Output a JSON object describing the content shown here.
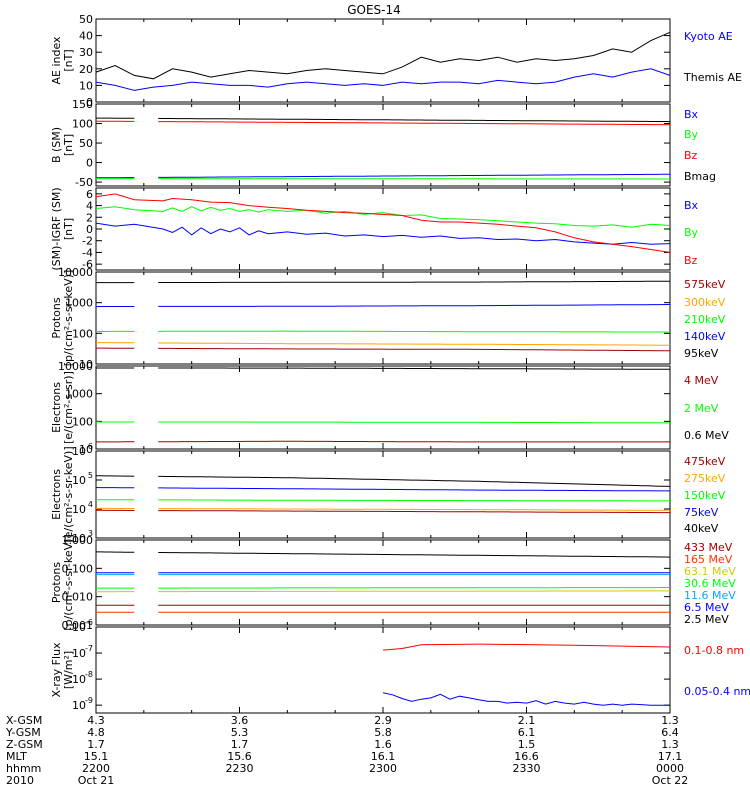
{
  "title": "GOES-14",
  "chart_data": [
    {
      "type": "line",
      "id": "ae",
      "ylabel": [
        "AE index",
        "[nT]"
      ],
      "ylim": [
        0,
        50
      ],
      "ticks": [
        {
          "v": 0,
          "t": "0"
        },
        {
          "v": 10,
          "t": "10"
        },
        {
          "v": 20,
          "t": "20"
        },
        {
          "v": 30,
          "t": "30"
        },
        {
          "v": 40,
          "t": "40"
        },
        {
          "v": 50,
          "t": "50"
        }
      ],
      "series": [
        {
          "name": "Kyoto AE",
          "color": "#0000ff",
          "t": [
            0,
            2,
            4,
            6,
            8,
            10,
            12,
            14,
            16,
            18,
            20,
            22,
            24,
            26,
            28,
            30,
            32,
            34,
            36,
            38,
            40,
            42,
            44,
            46,
            48,
            50,
            52,
            54,
            56,
            58,
            60
          ],
          "values": [
            12,
            10,
            7,
            9,
            10,
            12,
            11,
            10,
            10,
            9,
            11,
            12,
            11,
            10,
            11,
            10,
            12,
            11,
            12,
            12,
            11,
            13,
            12,
            11,
            12,
            15,
            17,
            15,
            18,
            20,
            16
          ]
        },
        {
          "name": "Themis AE",
          "color": "#000000",
          "t": [
            0,
            2,
            4,
            6,
            8,
            10,
            12,
            14,
            16,
            18,
            20,
            22,
            24,
            26,
            28,
            30,
            32,
            34,
            36,
            38,
            40,
            42,
            44,
            46,
            48,
            50,
            52,
            54,
            56,
            58,
            60
          ],
          "values": [
            18,
            22,
            16,
            14,
            20,
            18,
            15,
            17,
            19,
            18,
            17,
            19,
            20,
            19,
            18,
            17,
            21,
            27,
            24,
            26,
            25,
            27,
            24,
            26,
            25,
            26,
            28,
            32,
            30,
            37,
            42
          ]
        }
      ]
    },
    {
      "type": "line",
      "id": "b_sm",
      "ylabel": [
        "B (SM)",
        "[nT]"
      ],
      "ylim": [
        -60,
        150
      ],
      "ticks": [
        {
          "v": -50,
          "t": "-50"
        },
        {
          "v": 0,
          "t": "0"
        },
        {
          "v": 50,
          "t": "50"
        },
        {
          "v": 100,
          "t": "100"
        },
        {
          "v": 150,
          "t": "150"
        }
      ],
      "gaps": [
        [
          4.4,
          5.1
        ],
        [
          5.6,
          6.3
        ]
      ],
      "series": [
        {
          "name": "Bx",
          "color": "#0000ff",
          "t": [
            0,
            60
          ],
          "values": [
            -39,
            -30
          ]
        },
        {
          "name": "By",
          "color": "#00ff00",
          "t": [
            0,
            60
          ],
          "values": [
            -41,
            -42
          ]
        },
        {
          "name": "Bz",
          "color": "#ff0000",
          "t": [
            0,
            60
          ],
          "values": [
            106,
            97
          ]
        },
        {
          "name": "Bmag",
          "color": "#000000",
          "t": [
            0,
            60
          ],
          "values": [
            114,
            105
          ]
        }
      ]
    },
    {
      "type": "line",
      "id": "b_igrf",
      "ylabel": [
        "(SM)-IGRF (SM)",
        "[nT]"
      ],
      "ylim": [
        -7,
        7
      ],
      "ticks": [
        {
          "v": -6,
          "t": "-6"
        },
        {
          "v": -4,
          "t": "-4"
        },
        {
          "v": -2,
          "t": "-2"
        },
        {
          "v": 0,
          "t": "0"
        },
        {
          "v": 2,
          "t": "2"
        },
        {
          "v": 4,
          "t": "4"
        },
        {
          "v": 6,
          "t": "6"
        }
      ],
      "gaps": [
        [
          4.4,
          6.3
        ]
      ],
      "series": [
        {
          "name": "Bx",
          "color": "#0000ff",
          "t": [
            0,
            2,
            4,
            7,
            8,
            9,
            10,
            11,
            12,
            13,
            14,
            15,
            16,
            17,
            18,
            20,
            22,
            24,
            26,
            28,
            30,
            32,
            34,
            36,
            38,
            40,
            42,
            44,
            46,
            48,
            50,
            52,
            54,
            56,
            58,
            60
          ],
          "values": [
            1,
            0.5,
            0.8,
            0,
            -0.6,
            0.3,
            -1,
            0.2,
            -0.8,
            0,
            -0.5,
            0.2,
            -1,
            -0.3,
            -0.8,
            -0.5,
            -0.9,
            -0.7,
            -1.2,
            -1.0,
            -1.3,
            -1.1,
            -1.4,
            -1.2,
            -1.6,
            -1.5,
            -1.8,
            -1.7,
            -2.0,
            -1.8,
            -2.2,
            -2.4,
            -2.6,
            -2.3,
            -2.6,
            -2.5
          ]
        },
        {
          "name": "By",
          "color": "#00ff00",
          "t": [
            0,
            2,
            4,
            7,
            8,
            9,
            10,
            11,
            12,
            13,
            14,
            15,
            16,
            17,
            18,
            20,
            22,
            24,
            26,
            28,
            30,
            32,
            34,
            36,
            38,
            40,
            42,
            44,
            46,
            48,
            50,
            52,
            54,
            56,
            58,
            60
          ],
          "values": [
            3.5,
            3.8,
            3.3,
            3.0,
            3.6,
            3.0,
            3.8,
            3.1,
            3.7,
            3.2,
            3.5,
            3.0,
            3.3,
            2.9,
            3.3,
            3.0,
            3.2,
            2.7,
            3.0,
            2.5,
            2.8,
            2.3,
            2.4,
            1.8,
            1.7,
            1.6,
            1.4,
            1.2,
            1.0,
            0.9,
            0.6,
            0.5,
            0.7,
            0.3,
            0.8,
            0.6
          ]
        },
        {
          "name": "Bz",
          "color": "#ff0000",
          "t": [
            0,
            2,
            4,
            7,
            8,
            10,
            12,
            14,
            16,
            18,
            20,
            22,
            24,
            26,
            28,
            30,
            32,
            34,
            36,
            38,
            40,
            42,
            44,
            46,
            48,
            50,
            52,
            54,
            56,
            58,
            60
          ],
          "values": [
            5.5,
            6.0,
            5.0,
            4.8,
            5.2,
            5.0,
            4.6,
            4.5,
            4.0,
            3.7,
            3.5,
            3.2,
            3.0,
            2.8,
            2.7,
            2.5,
            2.3,
            1.5,
            1.2,
            1.2,
            1.0,
            0.8,
            0.5,
            0.2,
            -0.5,
            -1.5,
            -2.2,
            -2.6,
            -3.0,
            -3.5,
            -4.0
          ]
        }
      ]
    },
    {
      "type": "line",
      "id": "protons_low",
      "ylabel": [
        "Protons",
        "[p/(cm²-s-sr-keV)]"
      ],
      "scale": "log",
      "ylim": [
        10,
        10000
      ],
      "ticks": [
        {
          "v": 10,
          "t": "10"
        },
        {
          "v": 100,
          "t": "100"
        },
        {
          "v": 1000,
          "t": "1000"
        },
        {
          "v": 10000,
          "t": "10000"
        }
      ],
      "gaps": [
        [
          4.4,
          5.1
        ],
        [
          5.6,
          6.3
        ]
      ],
      "series": [
        {
          "name": "575keV",
          "color": "#a00000",
          "t": [
            0,
            20,
            40,
            60
          ],
          "values": [
            33,
            31,
            30,
            27
          ]
        },
        {
          "name": "300keV",
          "color": "#ffa500",
          "t": [
            0,
            20,
            40,
            60
          ],
          "values": [
            50,
            46,
            44,
            41
          ]
        },
        {
          "name": "210keV",
          "color": "#00ff00",
          "t": [
            0,
            20,
            40,
            60
          ],
          "values": [
            115,
            118,
            113,
            110
          ]
        },
        {
          "name": "140keV",
          "color": "#0000ff",
          "t": [
            0,
            20,
            40,
            60
          ],
          "values": [
            750,
            760,
            800,
            870
          ]
        },
        {
          "name": "95keV",
          "color": "#000000",
          "t": [
            0,
            20,
            40,
            60
          ],
          "values": [
            4500,
            4600,
            4700,
            5000
          ]
        }
      ]
    },
    {
      "type": "line",
      "id": "electrons_mev",
      "ylabel": [
        "Electrons",
        "[e/(cm²-s-sr)]"
      ],
      "scale": "log",
      "ylim": [
        10,
        10000
      ],
      "ticks": [
        {
          "v": 10,
          "t": "10"
        },
        {
          "v": 100,
          "t": "100"
        },
        {
          "v": 1000,
          "t": "1000"
        },
        {
          "v": 10000,
          "t": "10000"
        }
      ],
      "gaps": [
        [
          4.4,
          5.1
        ],
        [
          5.6,
          6.3
        ]
      ],
      "series": [
        {
          "name": "4 MeV",
          "color": "#a00000",
          "t": [
            0,
            20,
            40,
            60
          ],
          "values": [
            18,
            19,
            18,
            18
          ]
        },
        {
          "name": "2 MeV",
          "color": "#00ff00",
          "t": [
            0,
            20,
            40,
            60
          ],
          "values": [
            95,
            94,
            92,
            88
          ]
        },
        {
          "name": "0.6 MeV",
          "color": "#000000",
          "t": [
            0,
            20,
            40,
            60
          ],
          "values": [
            8500,
            8400,
            8000,
            7600
          ]
        }
      ]
    },
    {
      "type": "line",
      "id": "electrons_kev",
      "ylabel": [
        "Electrons",
        "[e/(cm²-s-sr-keV)]"
      ],
      "scale": "log",
      "ylim": [
        1000,
        1000000
      ],
      "ticks": [
        {
          "v": 1000,
          "t": "10",
          "e": "3"
        },
        {
          "v": 10000,
          "t": "10",
          "e": "4"
        },
        {
          "v": 100000,
          "t": "10",
          "e": "5"
        },
        {
          "v": 1000000,
          "t": "10",
          "e": "6"
        }
      ],
      "gaps": [
        [
          4.4,
          5.1
        ],
        [
          5.6,
          6.3
        ]
      ],
      "series": [
        {
          "name": "475keV",
          "color": "#a00000",
          "t": [
            0,
            20,
            40,
            60
          ],
          "values": [
            9000,
            8500,
            8000,
            7500
          ]
        },
        {
          "name": "275keV",
          "color": "#ffa500",
          "t": [
            0,
            20,
            40,
            60
          ],
          "values": [
            10500,
            10000,
            9500,
            9000
          ]
        },
        {
          "name": "150keV",
          "color": "#00ff00",
          "t": [
            0,
            20,
            40,
            60
          ],
          "values": [
            21000,
            20000,
            19500,
            19000
          ]
        },
        {
          "name": "75keV",
          "color": "#0000ff",
          "t": [
            0,
            20,
            40,
            60
          ],
          "values": [
            55000,
            50000,
            45000,
            42000
          ]
        },
        {
          "name": "40keV",
          "color": "#000000",
          "t": [
            0,
            20,
            40,
            60
          ],
          "values": [
            140000,
            120000,
            90000,
            60000
          ]
        }
      ]
    },
    {
      "type": "line",
      "id": "protons_mev",
      "ylabel": [
        "Protons",
        "[p/(cm²-s-sr-keV)]"
      ],
      "scale": "log",
      "ylim": [
        0.001,
        1
      ],
      "ticks": [
        {
          "v": 0.001,
          "t": "0.001"
        },
        {
          "v": 0.01,
          "t": "0.010"
        },
        {
          "v": 0.1,
          "t": "0.100"
        },
        {
          "v": 1,
          "t": "1.000"
        }
      ],
      "gaps": [
        [
          4.4,
          5.1
        ],
        [
          5.6,
          6.3
        ]
      ],
      "series": [
        {
          "name": "433 MeV",
          "color": "#a00000",
          "t": [
            0,
            60
          ],
          "values": [
            0.005,
            0.005
          ]
        },
        {
          "name": "165 MeV",
          "color": "#ff3300",
          "t": [
            0,
            60
          ],
          "values": [
            0.0028,
            0.0028
          ]
        },
        {
          "name": "63.1 MeV",
          "color": "#cccc00",
          "t": [
            0,
            60
          ],
          "values": [
            0.015,
            0.016
          ]
        },
        {
          "name": "30.6 MeV",
          "color": "#00ff00",
          "t": [
            0,
            60
          ],
          "values": [
            0.02,
            0.021
          ]
        },
        {
          "name": "11.6 MeV",
          "color": "#00aaff",
          "t": [
            0,
            60
          ],
          "values": [
            0.06,
            0.06
          ]
        },
        {
          "name": "6.5 MeV",
          "color": "#0000ff",
          "t": [
            0,
            60
          ],
          "values": [
            0.07,
            0.07
          ]
        },
        {
          "name": "2.5 MeV",
          "color": "#000000",
          "t": [
            0,
            60
          ],
          "values": [
            0.38,
            0.25
          ]
        }
      ]
    },
    {
      "type": "line",
      "id": "xray",
      "ylabel": [
        "X-ray Flux",
        "[W/m²]"
      ],
      "scale": "log",
      "ylim": [
        5e-10,
        1e-06
      ],
      "ticks": [
        {
          "v": 1e-09,
          "t": "10",
          "e": "-9"
        },
        {
          "v": 1e-08,
          "t": "10",
          "e": "-8"
        },
        {
          "v": 1e-07,
          "t": "10",
          "e": "-7"
        },
        {
          "v": 1e-06,
          "t": "10",
          "e": "-6"
        }
      ],
      "series": [
        {
          "name": "0.1-0.8 nm",
          "color": "#ff0000",
          "t": [
            30,
            32,
            34,
            40,
            50,
            60
          ],
          "values": [
            1.3e-07,
            1.5e-07,
            2.1e-07,
            2.2e-07,
            2e-07,
            1.7e-07
          ]
        },
        {
          "name": "0.05-0.4 nm",
          "color": "#0000ff",
          "t": [
            30,
            31,
            32,
            33,
            34,
            35,
            36,
            37,
            38,
            39,
            40,
            41,
            42,
            43,
            44,
            45,
            46,
            47,
            48,
            49,
            50,
            51,
            52,
            53,
            54,
            55,
            56,
            58,
            60
          ],
          "values": [
            3e-09,
            2.5e-09,
            1.8e-09,
            1.4e-09,
            1.7e-09,
            1.9e-09,
            2.6e-09,
            1.7e-09,
            2.2e-09,
            1.9e-09,
            1.6e-09,
            1.4e-09,
            1.4e-09,
            1.2e-09,
            1.3e-09,
            1.2e-09,
            1.5e-09,
            1.1e-09,
            1.4e-09,
            1.2e-09,
            1.1e-09,
            1.3e-09,
            1.1e-09,
            1e-09,
            1.1e-09,
            1e-09,
            1.1e-09,
            1e-09,
            1e-09
          ]
        }
      ]
    }
  ],
  "time_axis": {
    "rows": [
      "X-GSM",
      "Y-GSM",
      "Z-GSM",
      "MLT",
      "hhmm",
      "2010"
    ],
    "ticks": [
      {
        "t": 0,
        "labels": [
          "4.3",
          "4.8",
          "1.7",
          "15.1",
          "2200",
          "Oct 21"
        ]
      },
      {
        "t": 15,
        "labels": [
          "3.6",
          "5.3",
          "1.7",
          "15.6",
          "2230",
          ""
        ]
      },
      {
        "t": 30,
        "labels": [
          "2.9",
          "5.8",
          "1.6",
          "16.1",
          "2300",
          ""
        ]
      },
      {
        "t": 45,
        "labels": [
          "2.1",
          "6.1",
          "1.5",
          "16.6",
          "2330",
          ""
        ]
      },
      {
        "t": 60,
        "labels": [
          "1.3",
          "6.4",
          "1.3",
          "17.1",
          "0000",
          "Oct 22"
        ]
      }
    ]
  }
}
